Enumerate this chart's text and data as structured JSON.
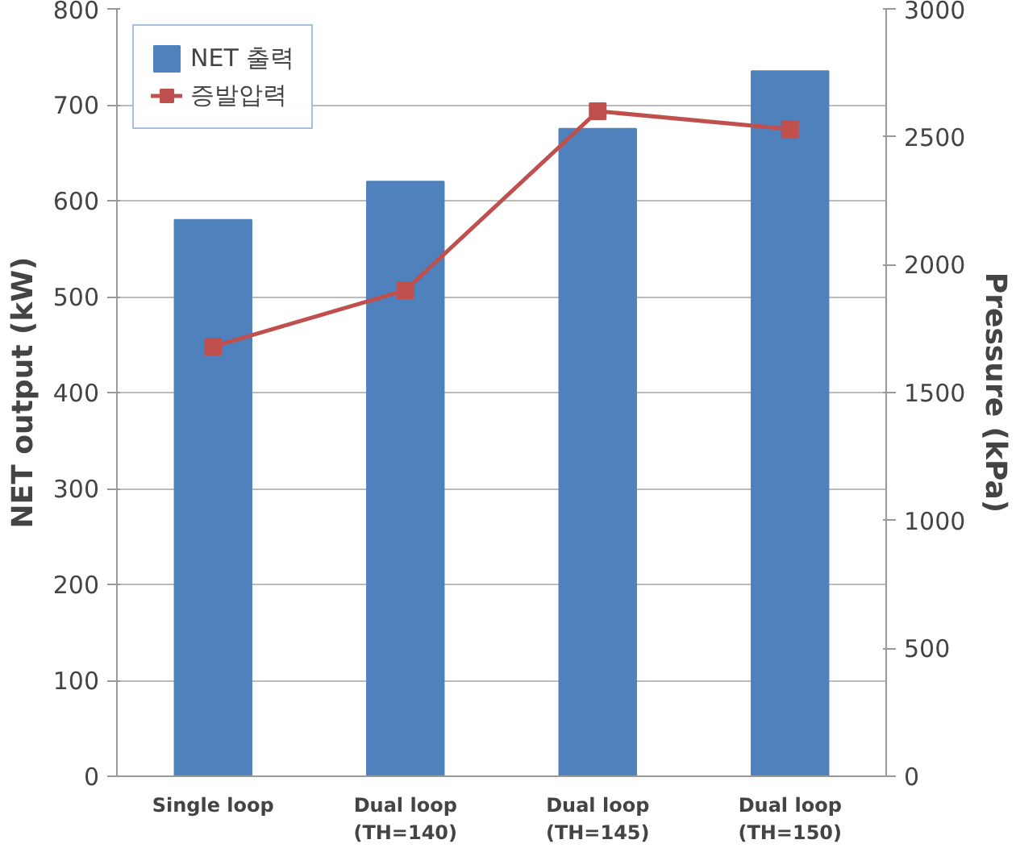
{
  "chart_data": {
    "type": "bar",
    "ylabel": "NET output (kW)",
    "y2label": "Pressure (kPa)",
    "categories": [
      "Single loop",
      "Dual loop\n(TH=140)",
      "Dual loop\n(TH=145)",
      "Dual loop\n(TH=150)"
    ],
    "series": [
      {
        "name": "NET 출력",
        "color": "#4f81bd",
        "values": [
          580,
          620,
          675,
          735
        ]
      },
      {
        "name": "증발압력",
        "type": "line",
        "axis": "y2",
        "color": "#c0504d",
        "marker": "square",
        "values": [
          1680,
          1900,
          2600,
          2530
        ]
      }
    ],
    "ylim": [
      0,
      800
    ],
    "yticks": [
      0,
      100,
      200,
      300,
      400,
      500,
      600,
      700,
      800
    ],
    "y2lim": [
      0,
      3000
    ],
    "y2ticks": [
      0,
      500,
      1000,
      1500,
      2000,
      2500,
      3000
    ],
    "grid": "y",
    "legend": "top left"
  }
}
